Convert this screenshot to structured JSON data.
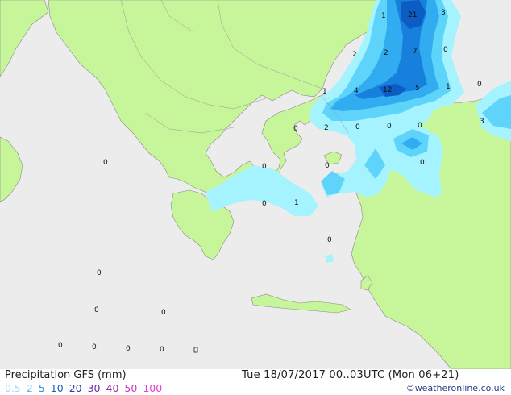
{
  "footer": {
    "title": "Precipitation GFS (mm)",
    "valid_time": "Tue 18/07/2017 00..03UTC  (Mon 06+21)",
    "credit": "©weatheronline.co.uk"
  },
  "legend": [
    {
      "label": "0.5",
      "color": "#9fd6ff"
    },
    {
      "label": "2",
      "color": "#58b8f0"
    },
    {
      "label": "5",
      "color": "#2a8ee0"
    },
    {
      "label": "10",
      "color": "#1760c8"
    },
    {
      "label": "20",
      "color": "#2a3bb0"
    },
    {
      "label": "30",
      "color": "#6a2aa8"
    },
    {
      "label": "40",
      "color": "#9a2aaa"
    },
    {
      "label": "50",
      "color": "#c83ac0"
    },
    {
      "label": "100",
      "color": "#e040d8"
    }
  ],
  "colors": {
    "sea": "#ececec",
    "land": "#c6f59a",
    "border": "#8a8a8a",
    "precip_light": "#a4f3ff",
    "precip_2": "#5ed4fb",
    "precip_5": "#32acf0",
    "precip_10": "#1780dc",
    "precip_20": "#0d5cc4"
  },
  "values": [
    {
      "id": "v-21",
      "label": "21"
    },
    {
      "id": "v-3a",
      "label": "3"
    },
    {
      "id": "v-1a",
      "label": "1"
    },
    {
      "id": "v-2a",
      "label": "2"
    },
    {
      "id": "v-2b",
      "label": "2"
    },
    {
      "id": "v-7",
      "label": "7"
    },
    {
      "id": "v-0a",
      "label": "0"
    },
    {
      "id": "v-1b",
      "label": "1"
    },
    {
      "id": "v-4",
      "label": "4"
    },
    {
      "id": "v-12",
      "label": "12"
    },
    {
      "id": "v-5",
      "label": "5"
    },
    {
      "id": "v-1c",
      "label": "1"
    },
    {
      "id": "v-0b",
      "label": "0"
    },
    {
      "id": "v-3b",
      "label": "3"
    },
    {
      "id": "v-0c",
      "label": "0"
    },
    {
      "id": "v-2c",
      "label": "2"
    },
    {
      "id": "v-0d",
      "label": "0"
    },
    {
      "id": "v-0e",
      "label": "0"
    },
    {
      "id": "v-0f",
      "label": "0"
    },
    {
      "id": "v-0g",
      "label": "0"
    },
    {
      "id": "v-0h",
      "label": "0"
    },
    {
      "id": "v-0i",
      "label": "0"
    },
    {
      "id": "v-0j",
      "label": "0"
    },
    {
      "id": "v-0k",
      "label": "0"
    },
    {
      "id": "v-1d",
      "label": "1"
    },
    {
      "id": "v-0l",
      "label": "0"
    },
    {
      "id": "v-0m",
      "label": "0"
    },
    {
      "id": "v-0n",
      "label": "0"
    },
    {
      "id": "v-0o",
      "label": "0"
    },
    {
      "id": "v-0p",
      "label": "0"
    },
    {
      "id": "v-0q",
      "label": "0"
    },
    {
      "id": "v-0r",
      "label": "0"
    },
    {
      "id": "v-0s",
      "label": "0"
    }
  ]
}
